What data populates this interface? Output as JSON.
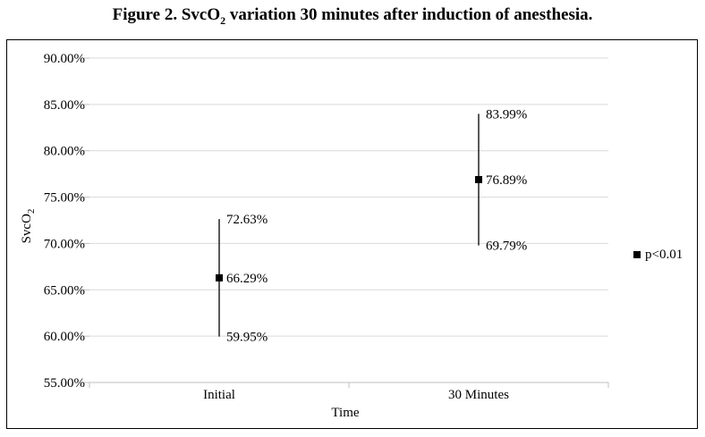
{
  "figure": {
    "title_prefix": "Figure 2. SvcO",
    "title_sub": "2",
    "title_suffix": " variation 30 minutes after induction of  anesthesia."
  },
  "chart_data": {
    "type": "scatter",
    "subtype": "high-low-mean error bars",
    "categories": [
      "Initial",
      "30 Minutes"
    ],
    "series": [
      {
        "name": "p<0.01",
        "mean": [
          66.29,
          76.89
        ],
        "high": [
          72.63,
          83.99
        ],
        "low": [
          59.95,
          69.79
        ]
      }
    ],
    "labels": {
      "mean": [
        "66.29%",
        "76.89%"
      ],
      "high": [
        "72.63%",
        "83.99%"
      ],
      "low": [
        "59.95%",
        "69.79%"
      ]
    },
    "ylim": [
      55,
      90
    ],
    "yticks": [
      90,
      85,
      80,
      75,
      70,
      65,
      60,
      55
    ],
    "ytick_labels": [
      "90.00%",
      "85.00%",
      "80.00%",
      "75.00%",
      "70.00%",
      "65.00%",
      "60.00%",
      "55.00%"
    ],
    "xlabel": "Time",
    "ylabel_main": "SvcO",
    "ylabel_sub": "2",
    "grid": true,
    "legend_position": "right",
    "marker_color": "#000000",
    "grid_color": "#d9d9d9",
    "axis_color": "#bfbfbf"
  }
}
